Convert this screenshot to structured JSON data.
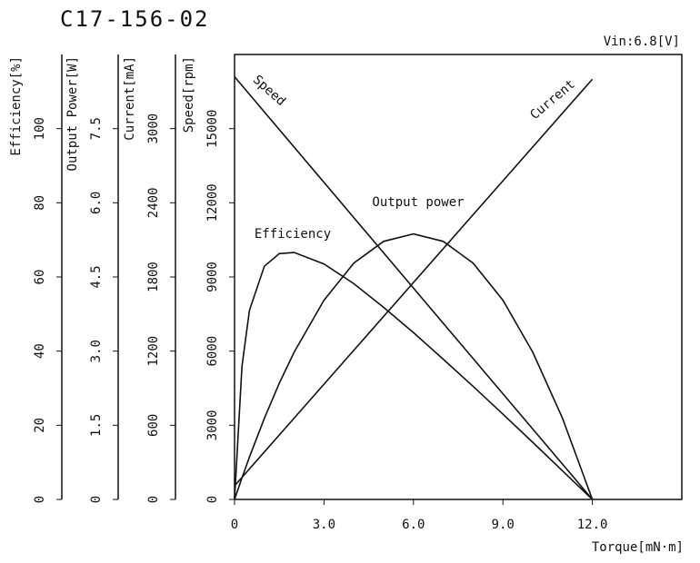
{
  "chart_data": {
    "type": "line",
    "title": "C17-156-02",
    "subtitle": "Vin:6.8[V]",
    "x_label": "Torque[mN·m]",
    "xlim": [
      0,
      15
    ],
    "xticks": [
      0,
      {
        "value": 3,
        "label": "3.0"
      },
      {
        "value": 6,
        "label": "6.0"
      },
      {
        "value": 9,
        "label": "9.0"
      },
      {
        "value": 12,
        "label": "12.0"
      }
    ],
    "y_axes": [
      {
        "label": "Efficiency[%]",
        "ylim": [
          0,
          120
        ],
        "yticks": [
          0,
          20,
          40,
          60,
          80,
          100
        ]
      },
      {
        "label": "Output Power[W]",
        "ylim": [
          0,
          9
        ],
        "yticks": [
          0,
          1.5,
          {
            "value": 3,
            "label": "3.0"
          },
          4.5,
          {
            "value": 6,
            "label": "6.0"
          },
          7.5
        ]
      },
      {
        "label": "Current[mA]",
        "ylim": [
          0,
          3600
        ],
        "yticks": [
          0,
          600,
          1200,
          1800,
          2400,
          3000
        ]
      },
      {
        "label": "Speed[rpm]",
        "ylim": [
          0,
          18000
        ],
        "yticks": [
          0,
          3000,
          6000,
          9000,
          12000,
          15000
        ]
      }
    ],
    "series": [
      {
        "name": "Speed",
        "axis": 3,
        "color": "#000000",
        "x": [
          0,
          12
        ],
        "values": [
          17100,
          0
        ]
      },
      {
        "name": "Current",
        "axis": 2,
        "color": "#000000",
        "x": [
          0,
          12
        ],
        "values": [
          110,
          3400
        ]
      },
      {
        "name": "Efficiency",
        "axis": 0,
        "color": "#000000",
        "x": [
          0,
          0.25,
          0.5,
          1,
          1.5,
          2,
          3,
          4,
          5,
          6,
          7,
          8,
          9,
          10,
          11,
          12
        ],
        "values": [
          0,
          36,
          51,
          62.9,
          66.3,
          66.6,
          63.5,
          58.2,
          51.8,
          45,
          37.8,
          30.5,
          23,
          15.4,
          7.7,
          0
        ]
      },
      {
        "name": "Output power",
        "axis": 1,
        "color": "#000000",
        "x": [
          0,
          0.25,
          0.5,
          1,
          1.5,
          2,
          3,
          4,
          5,
          6,
          7,
          8,
          9,
          10,
          11,
          12
        ],
        "values": [
          0,
          0.438,
          0.858,
          1.64,
          2.35,
          2.98,
          4.03,
          4.78,
          5.22,
          5.37,
          5.22,
          4.78,
          4.03,
          2.98,
          1.64,
          0
        ]
      }
    ]
  }
}
